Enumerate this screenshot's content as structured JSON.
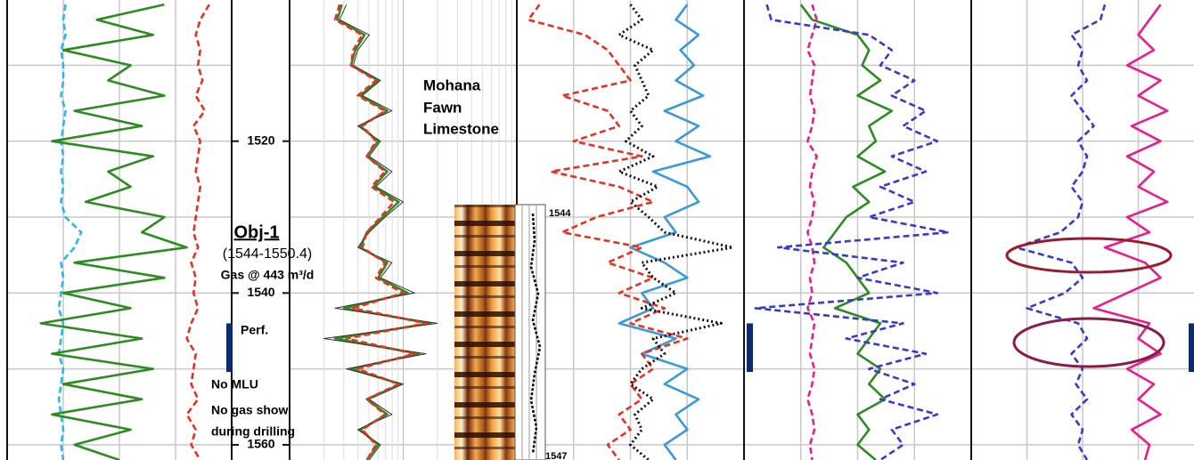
{
  "chart_data": {
    "type": "well-log",
    "depths": [
      1502,
      1504,
      1506,
      1508,
      1510,
      1512,
      1514,
      1516,
      1518,
      1520,
      1522,
      1524,
      1526,
      1528,
      1530,
      1532,
      1534,
      1536,
      1538,
      1540,
      1542,
      1544,
      1546,
      1548,
      1550,
      1552,
      1554,
      1556,
      1558,
      1560,
      1562
    ],
    "ylim": [
      1501.4,
      1562
    ],
    "yticks": [
      1520,
      1540,
      1560
    ],
    "gridlines": [
      1510,
      1520,
      1530,
      1540,
      1550,
      1560
    ],
    "perforation": [
      1544,
      1550.4
    ],
    "tracks": [
      {
        "xlim": [
          0,
          100
        ],
        "series": [
          {
            "color": "#29b6f6",
            "style": "dashed",
            "values": [
              26,
              25,
              26,
              24,
              25,
              25,
              24,
              26,
              25,
              24,
              25,
              24,
              25,
              24,
              26,
              33,
              30,
              24,
              25,
              24,
              23,
              25,
              24,
              23,
              25,
              24,
              23,
              24,
              25,
              24,
              25
            ]
          },
          {
            "color": "#2e8b22",
            "style": "solid",
            "values": [
              70,
              40,
              65,
              25,
              55,
              45,
              70,
              30,
              60,
              20,
              65,
              45,
              55,
              35,
              70,
              60,
              80,
              30,
              70,
              25,
              55,
              15,
              60,
              20,
              65,
              25,
              60,
              20,
              55,
              30,
              50
            ]
          },
          {
            "color": "#e53222",
            "style": "dashed",
            "values": [
              90,
              86,
              84,
              86,
              85,
              87,
              84,
              88,
              83,
              86,
              85,
              84,
              86,
              85,
              84,
              83,
              85,
              82,
              84,
              83,
              85,
              82,
              80,
              84,
              83,
              82,
              85,
              80,
              84,
              82,
              86
            ]
          }
        ]
      },
      {
        "xlim": [
          0,
          100
        ],
        "log_grid": true,
        "series": [
          {
            "color": "#2e8b22",
            "style": "solid",
            "values": [
              23,
              21,
              33,
              29,
              27,
              39,
              31,
              43,
              31,
              39,
              34,
              43,
              37,
              48,
              41,
              34,
              31,
              43,
              39,
              52,
              24,
              62,
              20,
              57,
              27,
              49,
              34,
              43,
              31,
              39,
              34
            ]
          },
          {
            "color": "#333333",
            "style": "thin",
            "values": [
              25,
              22,
              35,
              30,
              28,
              40,
              32,
              45,
              30,
              40,
              35,
              45,
              38,
              50,
              42,
              35,
              30,
              45,
              40,
              55,
              20,
              65,
              15,
              60,
              25,
              50,
              35,
              45,
              30,
              40,
              35
            ]
          },
          {
            "color": "#e53222",
            "style": "dashed",
            "values": [
              22,
              20,
              32,
              28,
              27,
              38,
              30,
              42,
              32,
              38,
              34,
              42,
              36,
              46,
              40,
              34,
              32,
              42,
              38,
              50,
              28,
              60,
              25,
              55,
              30,
              48,
              34,
              42,
              32,
              38,
              34
            ]
          }
        ]
      },
      {
        "xlim": [
          0,
          100
        ],
        "series": [
          {
            "color": "#3a9ad9",
            "style": "solid",
            "values": [
              75,
              70,
              80,
              72,
              78,
              70,
              82,
              65,
              80,
              70,
              85,
              60,
              75,
              80,
              65,
              70,
              50,
              65,
              75,
              55,
              60,
              45,
              70,
              55,
              75,
              65,
              80,
              70,
              75,
              65,
              70
            ]
          },
          {
            "color": "#e53222",
            "style": "dashed",
            "values": [
              10,
              5,
              30,
              40,
              45,
              50,
              20,
              40,
              45,
              25,
              55,
              15,
              45,
              60,
              35,
              20,
              55,
              40,
              60,
              45,
              65,
              50,
              75,
              55,
              60,
              50,
              55,
              45,
              50,
              40,
              45
            ]
          },
          {
            "color": "#111111",
            "style": "dotted",
            "values": [
              50,
              55,
              45,
              60,
              52,
              55,
              58,
              50,
              55,
              48,
              60,
              45,
              62,
              50,
              58,
              65,
              95,
              55,
              60,
              70,
              55,
              90,
              60,
              65,
              55,
              50,
              60,
              52,
              55,
              50,
              58
            ]
          }
        ]
      },
      {
        "xlim": [
          0,
          100
        ],
        "series": [
          {
            "color": "#2e8b22",
            "style": "solid",
            "values": [
              25,
              30,
              50,
              55,
              52,
              60,
              50,
              65,
              55,
              58,
              50,
              62,
              48,
              55,
              45,
              40,
              35,
              45,
              50,
              55,
              40,
              60,
              55,
              50,
              60,
              55,
              62,
              50,
              55,
              50,
              58
            ]
          },
          {
            "color": "#e91e8c",
            "style": "dashed",
            "values": [
              30,
              32,
              30,
              28,
              31,
              30,
              29,
              31,
              30,
              28,
              32,
              30,
              29,
              31,
              30,
              28,
              30,
              31,
              29,
              30,
              28,
              31,
              30,
              29,
              31,
              30,
              28,
              30,
              31,
              29,
              30
            ]
          },
          {
            "color": "#3a3ac8",
            "style": "dashed",
            "values": [
              10,
              12,
              55,
              65,
              60,
              75,
              65,
              80,
              70,
              85,
              65,
              80,
              60,
              75,
              55,
              90,
              15,
              70,
              50,
              85,
              5,
              70,
              45,
              80,
              55,
              75,
              60,
              85,
              65,
              70,
              60
            ]
          }
        ]
      },
      {
        "xlim": [
          0,
          100
        ],
        "series": [
          {
            "color": "#3a3ac8",
            "style": "dashed",
            "values": [
              60,
              58,
              45,
              50,
              48,
              52,
              45,
              50,
              55,
              48,
              52,
              50,
              45,
              50,
              48,
              40,
              20,
              45,
              50,
              42,
              25,
              48,
              52,
              45,
              50,
              47,
              52,
              45,
              50,
              48,
              52
            ]
          },
          {
            "color": "#e91e8c",
            "style": "solid",
            "values": [
              85,
              80,
              75,
              82,
              70,
              85,
              75,
              88,
              72,
              85,
              70,
              82,
              75,
              88,
              70,
              80,
              60,
              78,
              85,
              70,
              55,
              80,
              75,
              85,
              70,
              82,
              75,
              85,
              72,
              80,
              78
            ]
          }
        ]
      }
    ],
    "annotations": [
      "Mohana",
      "Fawn",
      "Limestone",
      "Obj-1",
      "(1544-1550.4)",
      "Gas @ 443 m³/d",
      "Perf.",
      "No MLU",
      "No gas show",
      "during drilling"
    ],
    "inset_labels": [
      "1544",
      "1547"
    ]
  }
}
